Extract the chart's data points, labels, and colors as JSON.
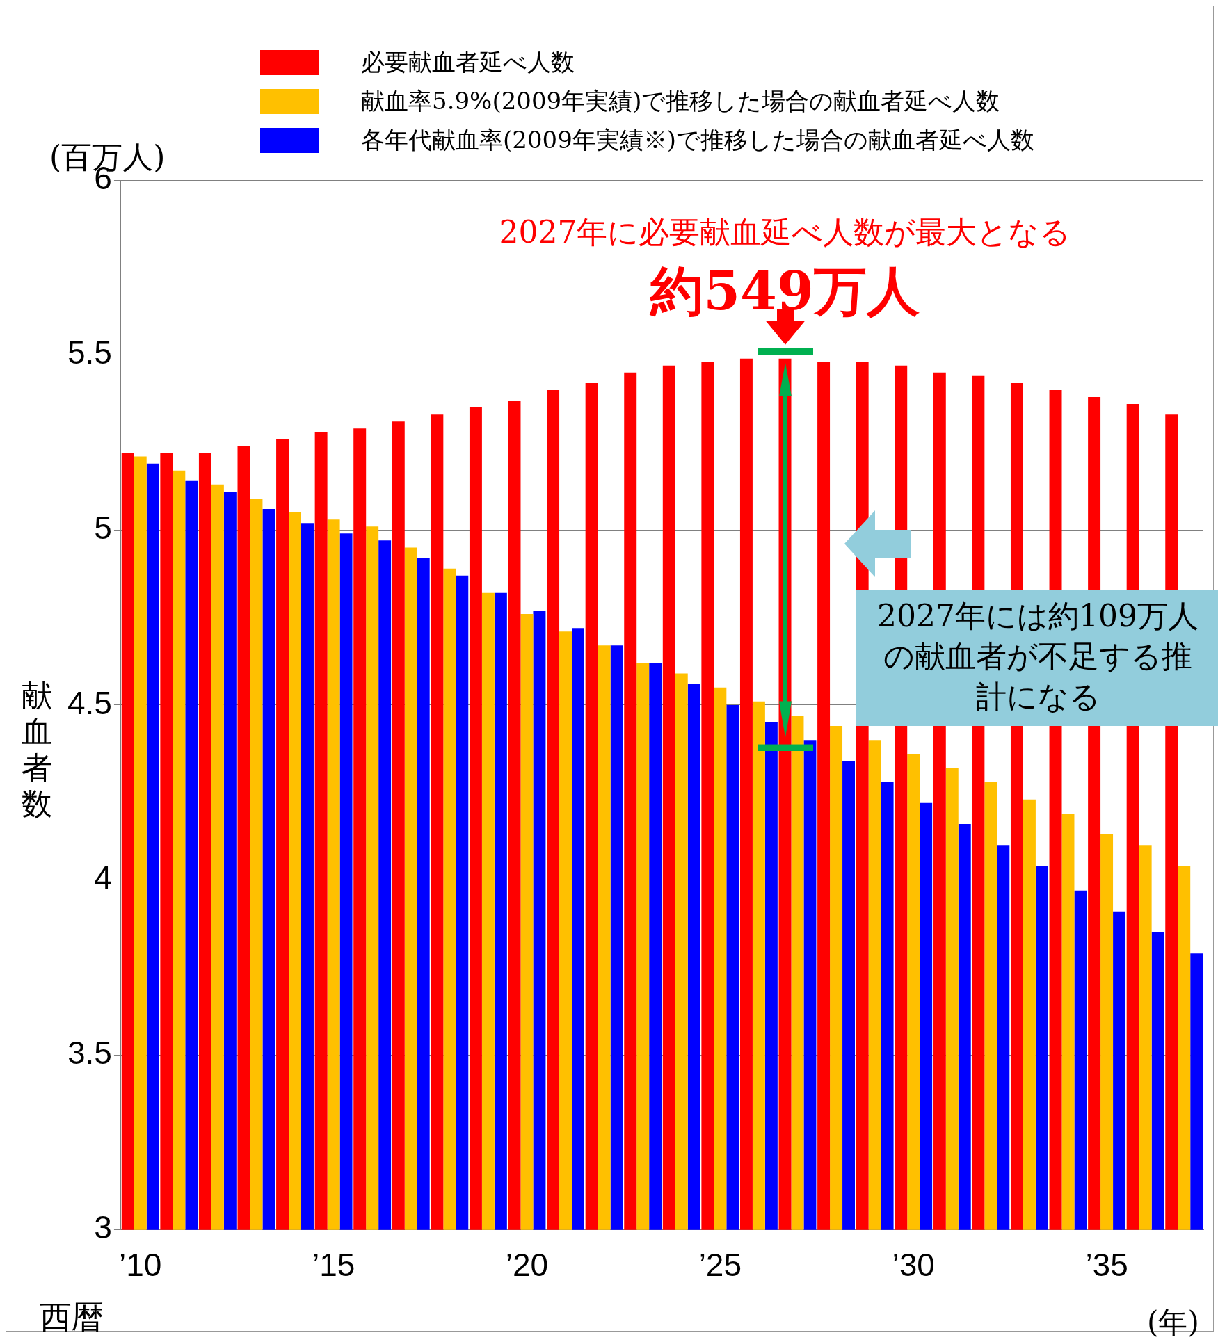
{
  "chart_data": {
    "type": "bar",
    "xlabel": "西暦",
    "ylabel": "献血者数",
    "categories": [
      "’10",
      null,
      null,
      null,
      null,
      "’15",
      null,
      null,
      null,
      null,
      "’20",
      null,
      null,
      null,
      null,
      "’25",
      null,
      null,
      null,
      null,
      "’30",
      null,
      null,
      null,
      null,
      "’35",
      null,
      null
    ],
    "series": [
      {
        "name": "必要献血者延べ人数",
        "color": "#ff0000",
        "values": [
          5.22,
          5.22,
          5.22,
          5.24,
          5.26,
          5.28,
          5.29,
          5.31,
          5.33,
          5.35,
          5.37,
          5.4,
          5.42,
          5.45,
          5.47,
          5.48,
          5.49,
          5.49,
          5.48,
          5.48,
          5.47,
          5.45,
          5.44,
          5.42,
          5.4,
          5.38,
          5.36,
          5.33
        ]
      },
      {
        "name": "献血率5.9%(2009年実績)で推移した場合の献血者延べ人数",
        "color": "#ffc000",
        "values": [
          5.21,
          5.17,
          5.13,
          5.09,
          5.05,
          5.03,
          5.01,
          4.95,
          4.89,
          4.82,
          4.76,
          4.71,
          4.67,
          4.62,
          4.59,
          4.55,
          4.51,
          4.47,
          4.44,
          4.4,
          4.36,
          4.32,
          4.28,
          4.23,
          4.19,
          4.13,
          4.1,
          4.04
        ]
      },
      {
        "name": "各年代献血率(2009年実績※)で推移した場合の献血者延べ人数",
        "color": "#0000ff",
        "values": [
          5.19,
          5.14,
          5.11,
          5.06,
          5.02,
          4.99,
          4.97,
          4.92,
          4.87,
          4.82,
          4.77,
          4.72,
          4.67,
          4.62,
          4.56,
          4.5,
          4.45,
          4.4,
          4.34,
          4.28,
          4.22,
          4.16,
          4.1,
          4.04,
          3.97,
          3.91,
          3.85,
          3.79
        ]
      }
    ],
    "ylim": [
      3,
      6
    ],
    "yticks": [
      3,
      3.5,
      4,
      4.5,
      5,
      5.5,
      6
    ],
    "grid": "y",
    "legend": "top",
    "annotations": [
      "(百万人)",
      "2027年に必要献血延べ人数が最大となる",
      "約549万人",
      "2027年には約109万人の献血者が不足する推計になる",
      "(年)"
    ]
  }
}
